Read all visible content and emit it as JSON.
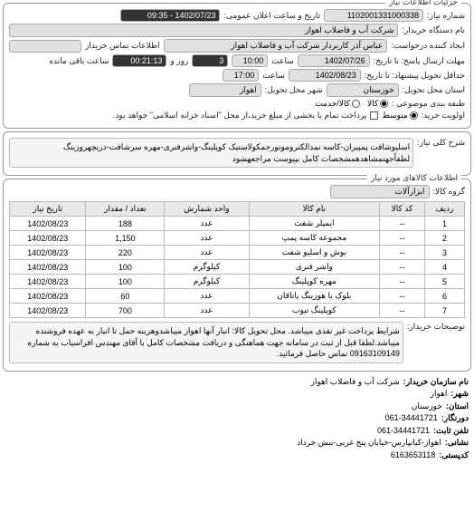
{
  "panel1": {
    "title": "جزئیات اطلاعات نیاز",
    "reqNoLabel": "شماره نیاز:",
    "reqNo": "1102001331000338",
    "announceLabel": "تاریخ و ساعت اعلان عمومی:",
    "announceValue": "1402/07/23 - 09:35",
    "buyerNameLabel": "نام دستگاه خریدار:",
    "buyerName": "شرکت آب و فاضلاب اهواز",
    "requesterLabel": "ایجاد کننده درخواست:",
    "requester": "عباس آذر کاربردار شرکت آب و فاضلاب اهواز",
    "contactLabel": "اطلاعات تماس خریدار",
    "contactValue": "",
    "sendDeadlineLabel": "مهلت ارسال پاسخ: تا تاریخ:",
    "sendDate": "1402/07/26",
    "sendTimeLabel": "ساعت",
    "sendTime": "10:00",
    "remainLabel": "ساعت باقی مانده",
    "remainTime": "00:21:13",
    "remainDayLabel": "روز و",
    "remainDay": "3",
    "deliverLabel": "حداقل تحویل پیشنهاد: تا تاریخ:",
    "deliverDate": "1402/08/23",
    "deliverTimeLabel": "ساعت",
    "deliverTime": "17:00",
    "provinceLabel": "استان محل تحویل:",
    "province": "خوزستان",
    "cityLabel": "شهر محل تحویل:",
    "city": "اهواز",
    "budgetLabel": "طبقه بندی موضوعی :",
    "budgetOpts": [
      "کالا",
      "کالا/خدمت"
    ],
    "priorityLabel": "اولویت خرید:",
    "priorityOpts": [
      "متوسط"
    ],
    "payNote": "پرداخت تمام یا بخشی از مبلغ خرید،از محل \"اسناد خزانه اسلامی\" خواهد بود.",
    "payChk": false
  },
  "panel2": {
    "titleLabel": "شرح کلی نیاز:",
    "desc": "اسلیوشافت پمپیران-کاسه نمدالکتروموتورجمکولاستیک کوپلینگ-واشرفنری-مهره سرشافت-دریچهروزینگ\nلطفاًجهتمشاهدهمشخصات کامل بپیوست مراجعهشود"
  },
  "panel3": {
    "title": "اطلاعات کالاهای مورد نیاز",
    "groupLabel": "گروه کالا:",
    "groupValue": "ابزارآلات",
    "cols": [
      "ردیف",
      "کد کالا",
      "نام کالا",
      "واحد شمارش",
      "تعداد / مقدار",
      "تاریخ نیاز"
    ],
    "rows": [
      [
        "1",
        "--",
        "ایمپلر شفت",
        "عدد",
        "188",
        "1402/08/23"
      ],
      [
        "2",
        "--",
        "مجموعه کاسه پمپ",
        "عدد",
        "1,150",
        "1402/08/23"
      ],
      [
        "3",
        "--",
        "بوش و اسلیو شفت",
        "عدد",
        "220",
        "1402/08/23"
      ],
      [
        "4",
        "--",
        "واشر فنری",
        "کیلوگرم",
        "100",
        "1402/08/23"
      ],
      [
        "5",
        "--",
        "مهره کوپلینگ",
        "کیلوگرم",
        "100",
        "1402/08/23"
      ],
      [
        "6",
        "--",
        "بلوک یا هوزینگ یاتاقان",
        "عدد",
        "60",
        "1402/08/23"
      ],
      [
        "7",
        "--",
        "کوپلینگ تیوب",
        "عدد",
        "700",
        "1402/08/23"
      ]
    ],
    "noteLabel": "توضیحات خریدار:",
    "note": "شرایط پرداخت غیر نقدی میباشد. محل تحویل کالا: انبار آنها اهواز میباشدوهزینه حمل تا انبار به عهده فروشنده میباشد.لطفا قبل از ثبت در سامانه جهت هماهنگی و دریافت مشخصات کامل با آقای مهندس افراسیاب به شماره 09163109149 تماس حاصل فرمائید."
  },
  "footer": {
    "orgLabel": "نام سازمان خریدار:",
    "org": "شرکت آب و فاضلاب اهواز",
    "cityLabel": "شهر:",
    "city": "اهواز",
    "provLabel": "استان:",
    "prov": "خوزستان",
    "faxLabel": "دورنگار:",
    "fax": "061-34441721",
    "telLabel": "تلفن ثابت:",
    "tel": "061-34441721",
    "addrLabel": "نشانی:",
    "addr": "اهواز-کیانپارس-خیابان پنج غربی-نبش خرداد",
    "postLabel": "کدپستی:",
    "post": "6163653118"
  }
}
